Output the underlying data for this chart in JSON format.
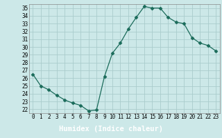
{
  "title": "",
  "xlabel": "Humidex (Indice chaleur)",
  "x": [
    0,
    1,
    2,
    3,
    4,
    5,
    6,
    7,
    8,
    9,
    10,
    11,
    12,
    13,
    14,
    15,
    16,
    17,
    18,
    19,
    20,
    21,
    22,
    23
  ],
  "y": [
    26.5,
    25.0,
    24.5,
    23.8,
    23.2,
    22.8,
    22.5,
    21.8,
    21.9,
    26.2,
    29.2,
    30.5,
    32.3,
    33.8,
    35.2,
    35.0,
    35.0,
    33.8,
    33.2,
    33.0,
    31.2,
    30.5,
    30.2,
    29.5
  ],
  "line_color": "#1a6b5a",
  "marker": "D",
  "marker_size": 2.5,
  "bg_color": "#cce8e8",
  "plot_bg_color": "#cce8e8",
  "grid_color": "#aacccc",
  "xlabel_bg": "#5599aa",
  "ylim_min": 21.5,
  "ylim_max": 35.5,
  "xlim_min": -0.5,
  "xlim_max": 23.5,
  "yticks": [
    22,
    23,
    24,
    25,
    26,
    27,
    28,
    29,
    30,
    31,
    32,
    33,
    34,
    35
  ],
  "xticks": [
    0,
    1,
    2,
    3,
    4,
    5,
    6,
    7,
    8,
    9,
    10,
    11,
    12,
    13,
    14,
    15,
    16,
    17,
    18,
    19,
    20,
    21,
    22,
    23
  ],
  "tick_fontsize": 5.5,
  "xlabel_fontsize": 7.5
}
